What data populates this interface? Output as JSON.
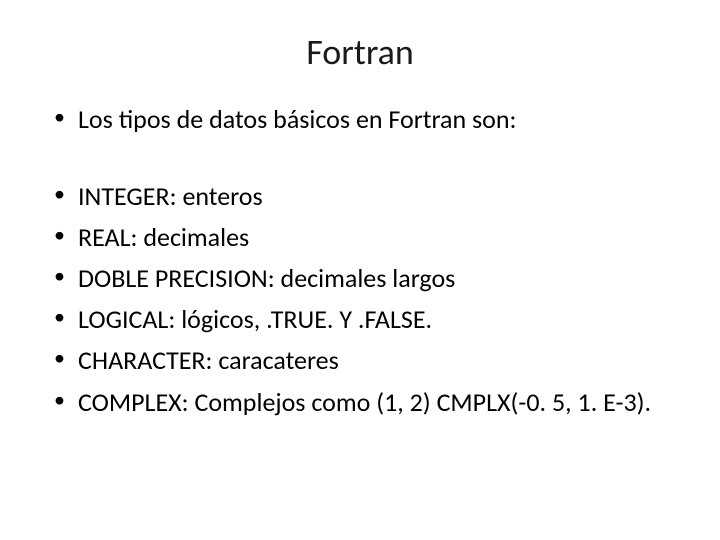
{
  "title": "Fortran",
  "intro": "Los tipos de datos básicos en Fortran son:",
  "items": [
    "INTEGER: enteros",
    "REAL: decimales",
    "DOBLE PRECISION: decimales largos",
    "LOGICAL: lógicos, .TRUE. Y .FALSE.",
    "CHARACTER: caracateres",
    "COMPLEX: Complejos como (1, 2)   CMPLX(-0. 5, 1. E-3)."
  ],
  "colors": {
    "background": "#ffffff",
    "text": "#000000",
    "title": "#1a1a1a"
  },
  "typography": {
    "title_fontsize": 36,
    "body_fontsize": 26,
    "font_family": "Calibri"
  }
}
